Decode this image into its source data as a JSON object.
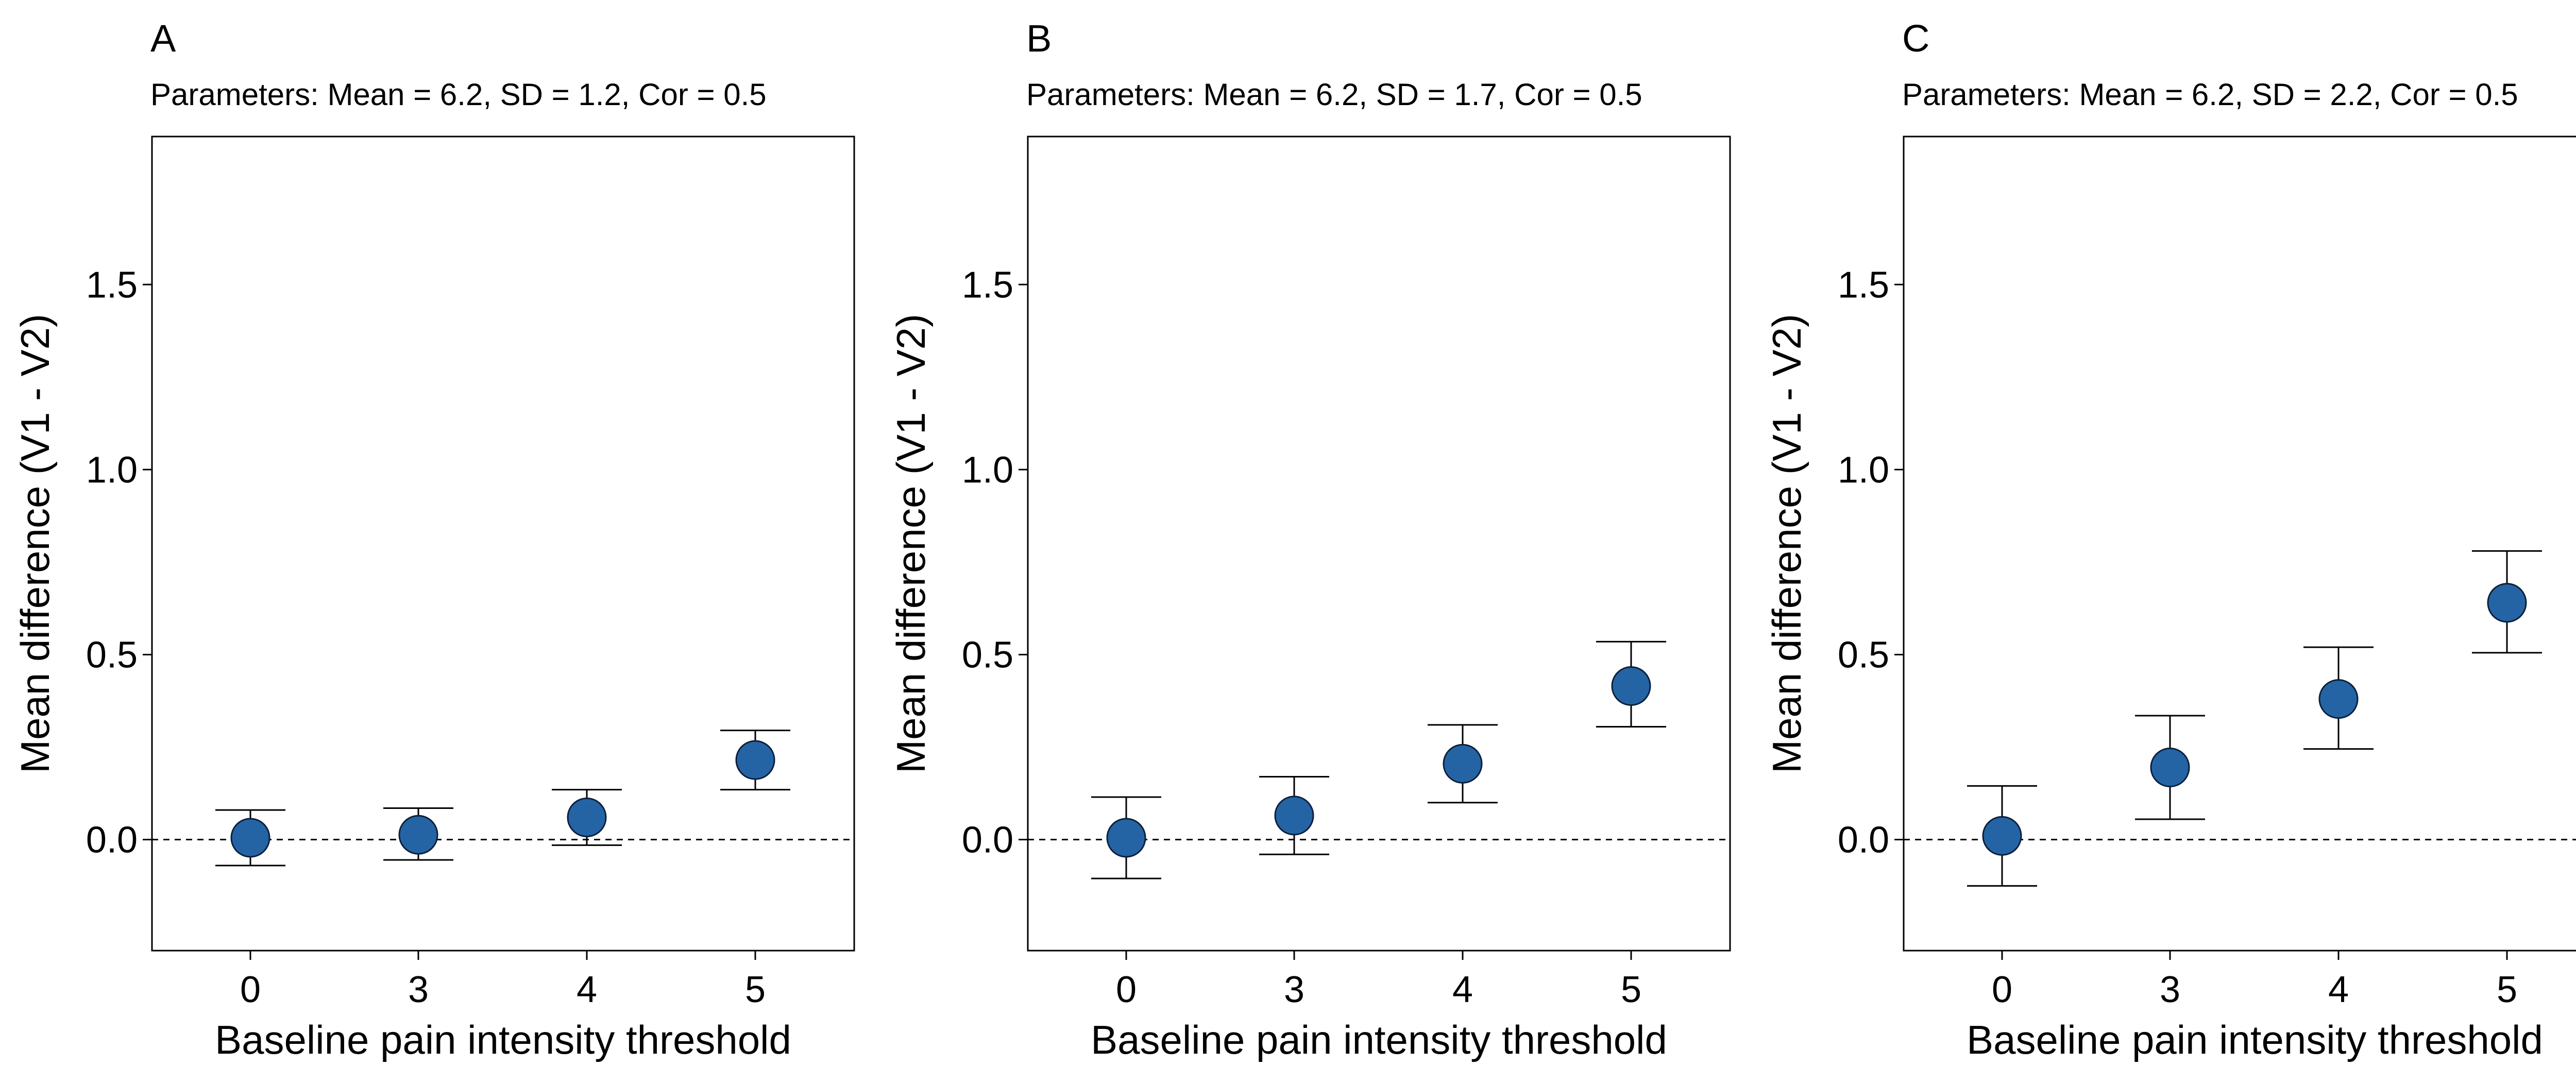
{
  "chart_data": [
    {
      "type": "scatter",
      "panel_label": "A",
      "subtitle": "Parameters: Mean = 6.2, SD = 1.2, Cor = 0.5",
      "xlabel": "Baseline pain intensity threshold",
      "ylabel": "Mean difference (V1 - V2)",
      "categories": [
        "0",
        "3",
        "4",
        "5"
      ],
      "values": [
        0.005,
        0.013,
        0.06,
        0.215
      ],
      "error_low": [
        -0.07,
        -0.055,
        -0.015,
        0.135
      ],
      "error_high": [
        0.08,
        0.085,
        0.135,
        0.295
      ],
      "ylim": [
        -0.3,
        1.9
      ],
      "yticks": [
        0.0,
        0.5,
        1.0,
        1.5
      ],
      "ytick_labels": [
        "0.0",
        "0.5",
        "1.0",
        "1.5"
      ],
      "reference_line": 0,
      "grid": false
    },
    {
      "type": "scatter",
      "panel_label": "B",
      "subtitle": "Parameters: Mean = 6.2, SD = 1.7, Cor = 0.5",
      "xlabel": "Baseline pain intensity threshold",
      "ylabel": "Mean difference (V1 - V2)",
      "categories": [
        "0",
        "3",
        "4",
        "5"
      ],
      "values": [
        0.005,
        0.065,
        0.205,
        0.415
      ],
      "error_low": [
        -0.105,
        -0.04,
        0.1,
        0.305
      ],
      "error_high": [
        0.115,
        0.17,
        0.31,
        0.535
      ],
      "ylim": [
        -0.3,
        1.9
      ],
      "yticks": [
        0.0,
        0.5,
        1.0,
        1.5
      ],
      "ytick_labels": [
        "0.0",
        "0.5",
        "1.0",
        "1.5"
      ],
      "reference_line": 0,
      "grid": false
    },
    {
      "type": "scatter",
      "panel_label": "C",
      "subtitle": "Parameters: Mean = 6.2, SD = 2.2, Cor = 0.5",
      "xlabel": "Baseline pain intensity threshold",
      "ylabel": "Mean difference (V1 - V2)",
      "categories": [
        "0",
        "3",
        "4",
        "5"
      ],
      "values": [
        0.01,
        0.195,
        0.38,
        0.64
      ],
      "error_low": [
        -0.125,
        0.055,
        0.245,
        0.505
      ],
      "error_high": [
        0.145,
        0.335,
        0.52,
        0.78
      ],
      "ylim": [
        -0.3,
        1.9
      ],
      "yticks": [
        0.0,
        0.5,
        1.0,
        1.5
      ],
      "ytick_labels": [
        "0.0",
        "0.5",
        "1.0",
        "1.5"
      ],
      "reference_line": 0,
      "grid": false
    }
  ],
  "colors": {
    "point_fill": "#2464a4",
    "point_stroke": "#0c1f3a",
    "axis": "#000000"
  }
}
